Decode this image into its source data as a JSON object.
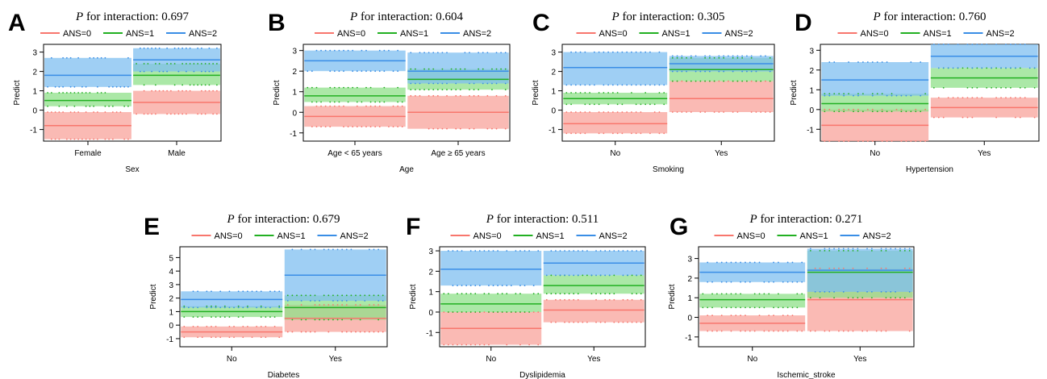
{
  "colors": {
    "ans0": "#f8766d",
    "ans1": "#22b022",
    "ans2": "#3a8ee6",
    "ans0_fill": "#f8a39b",
    "ans1_fill": "#8fe08a",
    "ans2_fill": "#7fbff0"
  },
  "legend": [
    "ANS=0",
    "ANS=1",
    "ANS=2"
  ],
  "chart_data": [
    {
      "type": "interaction-band",
      "panel_letter": "A",
      "title_prefix": "P",
      "title_rest": " for interaction: 0.697",
      "xlabel": "Sex",
      "ylabel": "Predict",
      "ylim": [
        -1.6,
        3.4
      ],
      "yticks": [
        -1,
        0,
        1,
        2,
        3
      ],
      "categories": [
        "Female",
        "Male"
      ],
      "series": [
        {
          "name": "ANS=0",
          "mean": [
            -0.8,
            0.4
          ],
          "lower": [
            -1.5,
            -0.2
          ],
          "upper": [
            -0.1,
            1.0
          ]
        },
        {
          "name": "ANS=1",
          "mean": [
            0.5,
            1.8
          ],
          "lower": [
            0.2,
            1.3
          ],
          "upper": [
            0.9,
            2.4
          ]
        },
        {
          "name": "ANS=2",
          "mean": [
            1.8,
            2.6
          ],
          "lower": [
            1.2,
            2.0
          ],
          "upper": [
            2.7,
            3.2
          ]
        }
      ]
    },
    {
      "type": "interaction-band",
      "panel_letter": "B",
      "title_prefix": "P",
      "title_rest": " for interaction: 0.604",
      "xlabel": "Age",
      "ylabel": "Predict",
      "ylim": [
        -1.4,
        3.3
      ],
      "yticks": [
        -1,
        0,
        1,
        2,
        3
      ],
      "categories": [
        "Age < 65 years",
        "Age ≥ 65 years"
      ],
      "series": [
        {
          "name": "ANS=0",
          "mean": [
            -0.2,
            0.0
          ],
          "lower": [
            -0.7,
            -0.8
          ],
          "upper": [
            0.3,
            0.8
          ]
        },
        {
          "name": "ANS=1",
          "mean": [
            0.8,
            1.6
          ],
          "lower": [
            0.5,
            1.1
          ],
          "upper": [
            1.2,
            2.1
          ]
        },
        {
          "name": "ANS=2",
          "mean": [
            2.5,
            2.0
          ],
          "lower": [
            2.0,
            1.4
          ],
          "upper": [
            3.0,
            2.9
          ]
        }
      ]
    },
    {
      "type": "interaction-band",
      "panel_letter": "C",
      "title_prefix": "P",
      "title_rest": " for interaction: 0.305",
      "xlabel": "Smoking",
      "ylabel": "Predict",
      "ylim": [
        -1.6,
        3.4
      ],
      "yticks": [
        -1,
        0,
        1,
        2,
        3
      ],
      "categories": [
        "No",
        "Yes"
      ],
      "series": [
        {
          "name": "ANS=0",
          "mean": [
            -0.7,
            0.6
          ],
          "lower": [
            -1.2,
            -0.1
          ],
          "upper": [
            -0.1,
            1.5
          ]
        },
        {
          "name": "ANS=1",
          "mean": [
            0.6,
            2.1
          ],
          "lower": [
            0.3,
            1.5
          ],
          "upper": [
            0.9,
            2.7
          ]
        },
        {
          "name": "ANS=2",
          "mean": [
            2.2,
            2.4
          ],
          "lower": [
            1.3,
            2.0
          ],
          "upper": [
            3.0,
            2.8
          ]
        }
      ]
    },
    {
      "type": "interaction-band",
      "panel_letter": "D",
      "title_prefix": "P",
      "title_rest": " for interaction: 0.760",
      "xlabel": "Hypertension",
      "ylabel": "Predict",
      "ylim": [
        -1.6,
        3.3
      ],
      "yticks": [
        -1,
        0,
        1,
        2,
        3
      ],
      "categories": [
        "No",
        "Yes"
      ],
      "series": [
        {
          "name": "ANS=0",
          "mean": [
            -0.8,
            0.1
          ],
          "lower": [
            -1.6,
            -0.4
          ],
          "upper": [
            0.0,
            0.6
          ]
        },
        {
          "name": "ANS=1",
          "mean": [
            0.3,
            1.6
          ],
          "lower": [
            -0.1,
            1.1
          ],
          "upper": [
            0.8,
            2.1
          ]
        },
        {
          "name": "ANS=2",
          "mean": [
            1.5,
            2.7
          ],
          "lower": [
            0.7,
            2.1
          ],
          "upper": [
            2.4,
            3.3
          ]
        }
      ]
    },
    {
      "type": "interaction-band",
      "panel_letter": "E",
      "title_prefix": "P",
      "title_rest": " for interaction: 0.679",
      "xlabel": "Diabetes",
      "ylabel": "Predict",
      "ylim": [
        -1.6,
        5.8
      ],
      "yticks": [
        -1,
        0,
        1,
        2,
        3,
        4,
        5
      ],
      "categories": [
        "No",
        "Yes"
      ],
      "series": [
        {
          "name": "ANS=0",
          "mean": [
            -0.5,
            0.5
          ],
          "lower": [
            -0.9,
            -0.5
          ],
          "upper": [
            -0.1,
            1.5
          ]
        },
        {
          "name": "ANS=1",
          "mean": [
            1.0,
            1.3
          ],
          "lower": [
            0.6,
            0.4
          ],
          "upper": [
            1.4,
            2.2
          ]
        },
        {
          "name": "ANS=2",
          "mean": [
            1.9,
            3.7
          ],
          "lower": [
            1.3,
            1.8
          ],
          "upper": [
            2.5,
            5.6
          ]
        }
      ]
    },
    {
      "type": "interaction-band",
      "panel_letter": "F",
      "title_prefix": "P",
      "title_rest": " for interaction: 0.511",
      "xlabel": "Dyslipidemia",
      "ylabel": "Predict",
      "ylim": [
        -1.7,
        3.2
      ],
      "yticks": [
        -1,
        0,
        1,
        2,
        3
      ],
      "categories": [
        "No",
        "Yes"
      ],
      "series": [
        {
          "name": "ANS=0",
          "mean": [
            -0.8,
            0.1
          ],
          "lower": [
            -1.6,
            -0.5
          ],
          "upper": [
            0.0,
            0.6
          ]
        },
        {
          "name": "ANS=1",
          "mean": [
            0.4,
            1.3
          ],
          "lower": [
            0.0,
            0.9
          ],
          "upper": [
            0.9,
            1.8
          ]
        },
        {
          "name": "ANS=2",
          "mean": [
            2.1,
            2.4
          ],
          "lower": [
            1.3,
            1.8
          ],
          "upper": [
            3.0,
            3.0
          ]
        }
      ]
    },
    {
      "type": "interaction-band",
      "panel_letter": "G",
      "title_prefix": "P",
      "title_rest": " for interaction: 0.271",
      "xlabel": "Ischemic_stroke",
      "ylabel": "Predict",
      "ylim": [
        -1.5,
        3.6
      ],
      "yticks": [
        -1,
        0,
        1,
        2,
        3
      ],
      "categories": [
        "No",
        "Yes"
      ],
      "series": [
        {
          "name": "ANS=0",
          "mean": [
            -0.3,
            0.9
          ],
          "lower": [
            -0.7,
            -0.7
          ],
          "upper": [
            0.1,
            2.5
          ]
        },
        {
          "name": "ANS=1",
          "mean": [
            0.9,
            2.3
          ],
          "lower": [
            0.5,
            1.0
          ],
          "upper": [
            1.2,
            3.4
          ]
        },
        {
          "name": "ANS=2",
          "mean": [
            2.3,
            2.4
          ],
          "lower": [
            1.8,
            1.3
          ],
          "upper": [
            2.8,
            3.5
          ]
        }
      ]
    }
  ]
}
